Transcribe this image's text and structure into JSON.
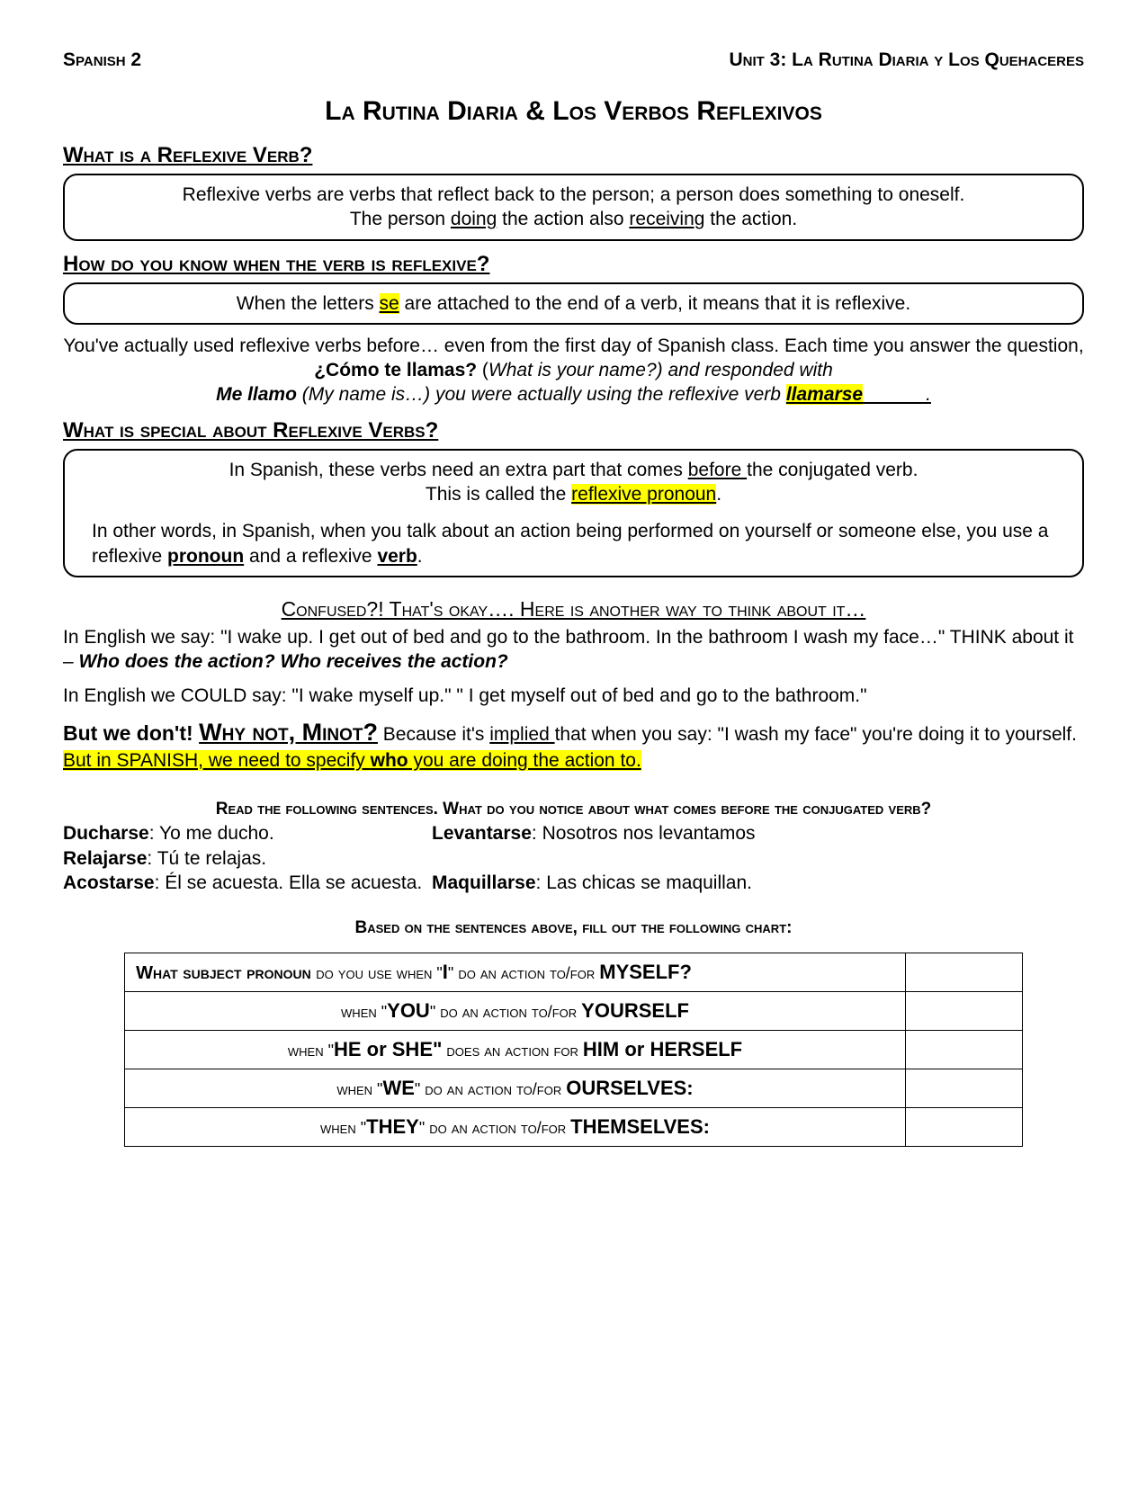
{
  "header": {
    "left": "Spanish 2",
    "right": "Unit 3: La Rutina Diaria y Los Quehaceres"
  },
  "title": "La Rutina Diaria & Los Verbos Reflexivos",
  "section1": {
    "heading": "What is a Reflexive Verb?",
    "box_line1": "Reflexive verbs are verbs that reflect back to the person; a person does something to oneself.",
    "box_line2a": "The person ",
    "box_line2b": "doing",
    "box_line2c": " the action also ",
    "box_line2d": "receiving",
    "box_line2e": " the action."
  },
  "section2": {
    "heading": "How do you know when the verb is reflexive?",
    "box_a": "When the letters ",
    "box_b": "se",
    "box_c": " are attached to the end of a verb, it means that it is reflexive.",
    "p1": "You've actually used reflexive verbs before… even from the first day of Spanish class. Each time you answer the question, ",
    "p1_bold": "¿Cómo te llamas?",
    "p1_open": " (",
    "p1_it": "What is your name?) and responded with",
    "p2a": "Me llamo",
    "p2b": " (My name is…) you were actually using the reflexive verb ",
    "p2c": "llamarse",
    "p2d": "            ."
  },
  "section3": {
    "heading": "What is special about Reflexive Verbs?",
    "box_l1a": "In Spanish, these verbs need an extra part that comes ",
    "box_l1b": " before ",
    "box_l1c": "the conjugated verb.",
    "box_l2a": "This is called the ",
    "box_l2b": "reflexive pronoun",
    "box_l2c": ".",
    "p_a": "In other words, in Spanish, when you talk about an action being performed on yourself or someone else, you use a reflexive ",
    "p_b": "pronoun",
    "p_c": " and a reflexive ",
    "p_d": "verb",
    "p_e": "."
  },
  "confused": {
    "heading": "Confused?! That's okay…. Here is another way to think about it…",
    "p1": "In English we say: \"I wake up. I get out of bed and go to the bathroom. In the bathroom I wash my face…\"  THINK about it – ",
    "p1_bi": "Who does the action?  Who receives the action?",
    "p2": "In English we COULD say: \"I wake myself up.\"  \" I get myself out of bed and go to the bathroom.\"",
    "p3a": "But we don't! ",
    "p3b": "Why not, Minot?",
    "p3c": " Because it's ",
    "p3d": "implied ",
    "p3e": "that when you say: \"I wash my face\" you're doing it to yourself.  ",
    "p3f": "But in SPANISH, we need to specify ",
    "p3g": "who",
    "p3h": " you are doing the action to."
  },
  "examples": {
    "heading": "Read the following sentences. What do you notice about what comes before the conjugated verb?",
    "r1c1_b": "Ducharse",
    "r1c1_t": ": Yo me ducho.",
    "r1c2_b": "Levantarse",
    "r1c2_t": ": Nosotros nos levantamos",
    "r2c1_b": "Relajarse",
    "r2c1_t": ": Tú te relajas.",
    "r3c1_b": "Acostarse",
    "r3c1_t": ": Él se acuesta.  Ella se acuesta.",
    "r3c2_b": "Maquillarse",
    "r3c2_t": ": Las chicas se maquillan."
  },
  "chart": {
    "heading": "Based on the sentences above, fill out the following chart:",
    "rows": [
      {
        "pre": "What subject pronoun ",
        "mid": "do you use when \"",
        "bold1": "I",
        "after1": "\" do an action to/for   ",
        "bold2": "MYSELF?",
        "first": true
      },
      {
        "pre": "when \"",
        "bold1": "YOU",
        "after1": "\" do an action to/for ",
        "bold2": "YOURSELF"
      },
      {
        "pre": "when \"",
        "bold1": "HE or SHE\"",
        "after1": " does an action for ",
        "bold2": "HIM or HERSELF"
      },
      {
        "pre": "when \"",
        "bold1": "WE",
        "after1": "\" do an action to/for ",
        "bold2": "OURSELVES:"
      },
      {
        "pre": "when \"",
        "bold1": "THEY",
        "after1": "\" do an action to/for ",
        "bold2": "THEMSELVES:"
      }
    ]
  }
}
